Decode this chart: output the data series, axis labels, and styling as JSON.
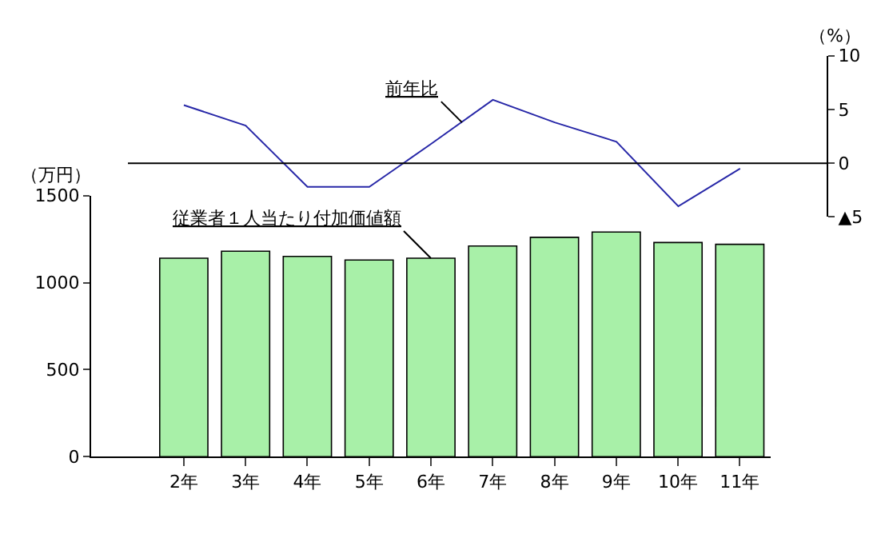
{
  "chart_data": [
    {
      "type": "line",
      "categories": [
        null,
        null,
        null,
        null,
        null,
        null,
        null,
        null,
        null,
        null,
        null
      ],
      "series": [
        {
          "name": "前年比",
          "color": "#2828a8",
          "values": [
            null,
            5.4,
            3.5,
            -2.2,
            -2.2,
            1.8,
            5.9,
            3.8,
            2.0,
            -4.0,
            -0.5
          ]
        }
      ],
      "ylabel": "（%）",
      "ylim": [
        -5,
        10
      ],
      "yticks": [
        {
          "value": -5,
          "label": "▲5"
        },
        0,
        5,
        10
      ],
      "ref_lines": [
        {
          "axis": "y",
          "value": 0,
          "color": "#000000"
        }
      ],
      "tick_labels": "y",
      "grid": false,
      "marker": "none"
    },
    {
      "type": "bar",
      "categories": [
        null,
        "2年",
        "3年",
        "4年",
        "5年",
        "6年",
        "7年",
        "8年",
        "9年",
        "10年",
        "11年"
      ],
      "series": [
        {
          "name": "従業者１人当たり付加価値額",
          "color": "#a8f0a8",
          "values": [
            null,
            1140,
            1180,
            1150,
            1130,
            1140,
            1210,
            1260,
            1290,
            1230,
            1220
          ]
        }
      ],
      "ylabel": "（万円）",
      "ylim": [
        0,
        1500
      ],
      "yticks": [
        0,
        500,
        1000,
        1500
      ],
      "grid": false
    }
  ]
}
